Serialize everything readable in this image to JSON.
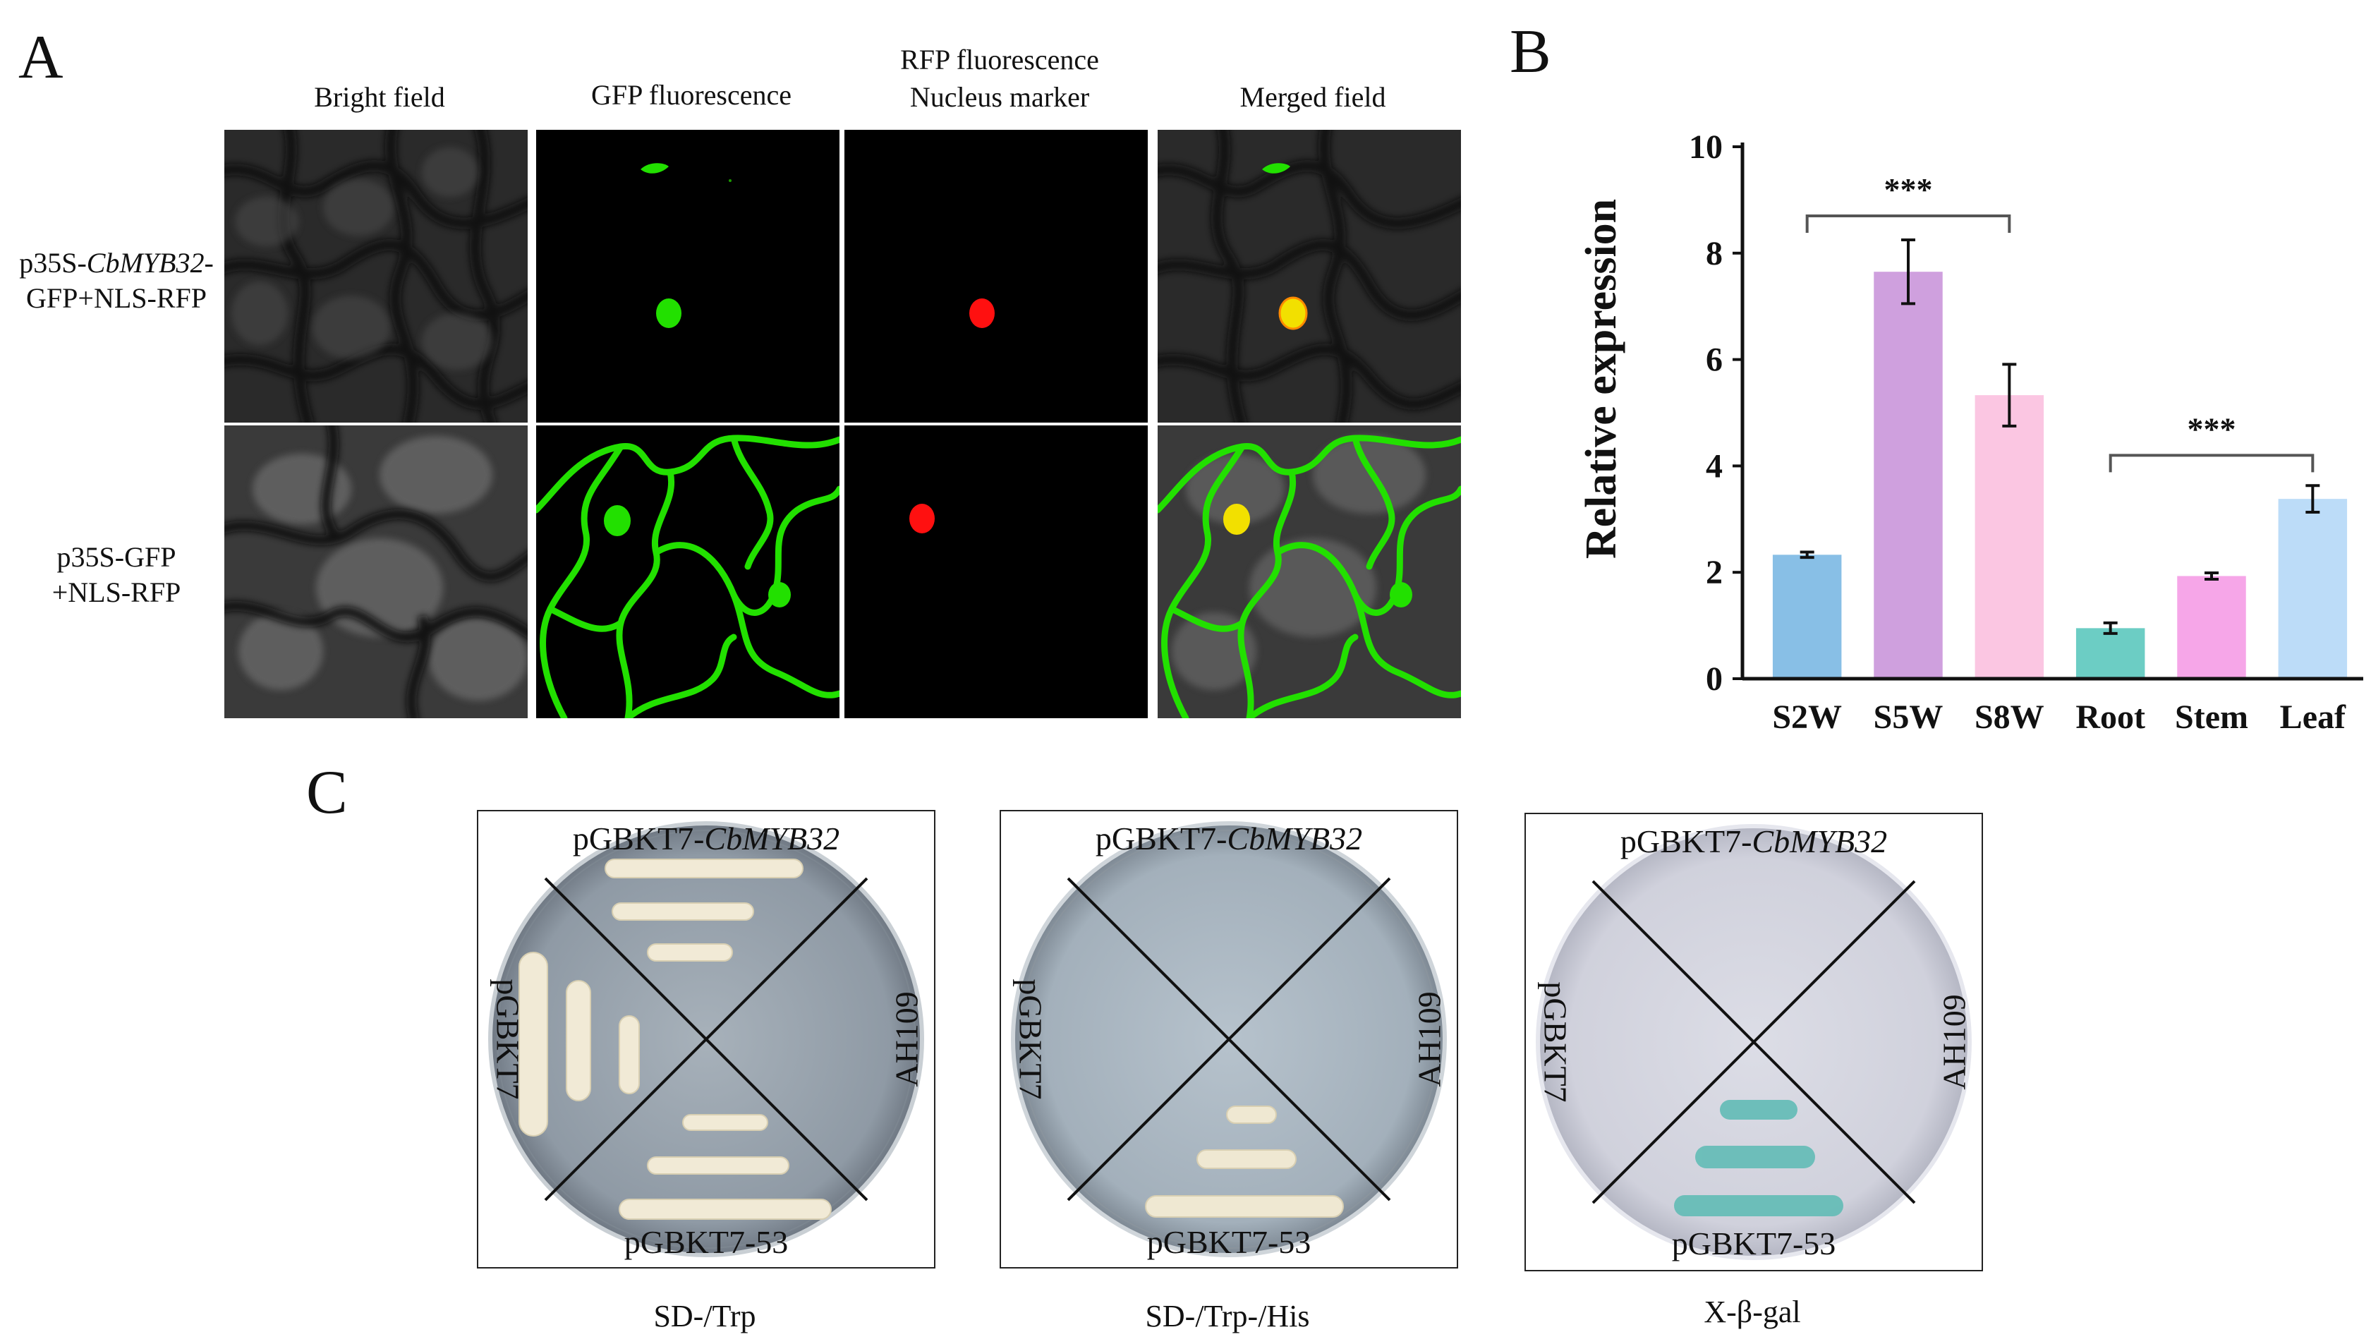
{
  "panel_a": {
    "letter": "A",
    "columns": [
      "Bright field",
      "GFP fluorescence",
      "RFP fluorescence",
      "Nucleus marker",
      "Merged field"
    ],
    "rows": [
      {
        "prefix": "p35S-",
        "gene": "CbMYB32",
        "suffix": "-",
        "line2": "GFP+NLS-RFP"
      },
      {
        "line1": "p35S-GFP",
        "line2": "+NLS-RFP"
      }
    ]
  },
  "panel_b": {
    "letter": "B"
  },
  "panel_c": {
    "letter": "C",
    "plates": [
      {
        "top_prefix": "pGBKT7-",
        "top_gene": "CbMYB32",
        "left": "pGBKT7",
        "right": "AH109",
        "bottom": "pGBKT7-53",
        "caption": "SD-/Trp"
      },
      {
        "top_prefix": "pGBKT7-",
        "top_gene": "CbMYB32",
        "left": "pGBKT7",
        "right": "AH109",
        "bottom": "pGBKT7-53",
        "caption": "SD-/Trp-/His"
      },
      {
        "top_prefix": "pGBKT7-",
        "top_gene": "CbMYB32",
        "left": "pGBKT7",
        "right": "AH109",
        "bottom": "pGBKT7-53",
        "caption": "X-β-gal"
      }
    ]
  },
  "colors": {
    "gfp": "#22e000",
    "rfp": "#ff1010",
    "merge": "#f2e000"
  },
  "chart_data": {
    "type": "bar",
    "categories": [
      "S2W",
      "S5W",
      "S8W",
      "Root",
      "Stem",
      "Leaf"
    ],
    "values": [
      2.33,
      7.65,
      5.33,
      0.95,
      1.93,
      3.38
    ],
    "errors": [
      0.05,
      0.6,
      0.58,
      0.1,
      0.06,
      0.25
    ],
    "colors": [
      "#88bfe6",
      "#cfa0de",
      "#fbc6e2",
      "#6ccdc4",
      "#f6a6e8",
      "#bcdcf8"
    ],
    "ylabel": "Relative expression",
    "yticks": [
      0,
      2,
      4,
      6,
      8,
      10
    ],
    "ylim": [
      0,
      10
    ],
    "significance": [
      {
        "from": 0,
        "to": 2,
        "level": 8.7,
        "label": "***"
      },
      {
        "from": 3,
        "to": 5,
        "level": 4.2,
        "label": "***"
      }
    ]
  }
}
